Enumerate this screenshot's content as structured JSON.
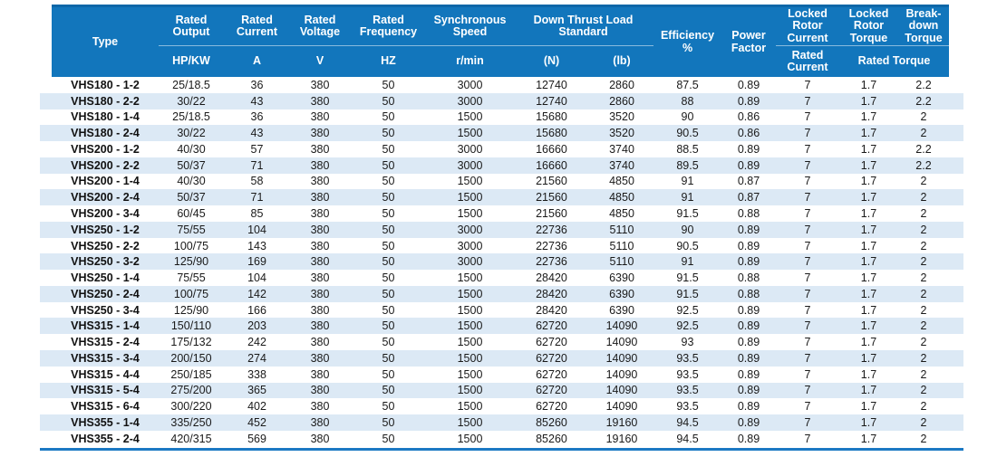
{
  "table": {
    "header": {
      "type_label": "Type",
      "top": {
        "rated_output": "Rated\nOutput",
        "rated_current": "Rated\nCurrent",
        "rated_voltage": "Rated\nVoltage",
        "rated_frequency": "Rated\nFrequency",
        "synchronous_speed": "Synchronous\nSpeed",
        "down_thrust_load": "Down Thrust Load\nStandard",
        "efficiency": "Efficiency\n%",
        "power_factor": "Power\nFactor",
        "locked_rotor_current": "Locked\nRotor\nCurrent",
        "locked_rotor_torque": "Locked\nRotor\nTorque",
        "breakdown_torque": "Break-\ndown\nTorque"
      },
      "units": {
        "output": "HP/KW",
        "current": "A",
        "voltage": "V",
        "frequency": "HZ",
        "speed": "r/min",
        "thrust_newton": "(N)",
        "thrust_pound": "(lb)",
        "locked_rotor_current_sub": "Rated\nCurrent",
        "torque_sub": "Rated Torque"
      }
    },
    "rows": [
      [
        "VHS180 - 1-2",
        "25/18.5",
        "36",
        "380",
        "50",
        "3000",
        "12740",
        "2860",
        "87.5",
        "0.89",
        "7",
        "1.7",
        "2.2"
      ],
      [
        "VHS180 - 2-2",
        "30/22",
        "43",
        "380",
        "50",
        "3000",
        "12740",
        "2860",
        "88",
        "0.89",
        "7",
        "1.7",
        "2.2"
      ],
      [
        "VHS180 - 1-4",
        "25/18.5",
        "36",
        "380",
        "50",
        "1500",
        "15680",
        "3520",
        "90",
        "0.86",
        "7",
        "1.7",
        "2"
      ],
      [
        "VHS180 - 2-4",
        "30/22",
        "43",
        "380",
        "50",
        "1500",
        "15680",
        "3520",
        "90.5",
        "0.86",
        "7",
        "1.7",
        "2"
      ],
      [
        "VHS200 - 1-2",
        "40/30",
        "57",
        "380",
        "50",
        "3000",
        "16660",
        "3740",
        "88.5",
        "0.89",
        "7",
        "1.7",
        "2.2"
      ],
      [
        "VHS200 - 2-2",
        "50/37",
        "71",
        "380",
        "50",
        "3000",
        "16660",
        "3740",
        "89.5",
        "0.89",
        "7",
        "1.7",
        "2.2"
      ],
      [
        "VHS200 - 1-4",
        "40/30",
        "58",
        "380",
        "50",
        "1500",
        "21560",
        "4850",
        "91",
        "0.87",
        "7",
        "1.7",
        "2"
      ],
      [
        "VHS200 - 2-4",
        "50/37",
        "71",
        "380",
        "50",
        "1500",
        "21560",
        "4850",
        "91",
        "0.87",
        "7",
        "1.7",
        "2"
      ],
      [
        "VHS200 - 3-4",
        "60/45",
        "85",
        "380",
        "50",
        "1500",
        "21560",
        "4850",
        "91.5",
        "0.88",
        "7",
        "1.7",
        "2"
      ],
      [
        "VHS250 - 1-2",
        "75/55",
        "104",
        "380",
        "50",
        "3000",
        "22736",
        "5110",
        "90",
        "0.89",
        "7",
        "1.7",
        "2"
      ],
      [
        "VHS250 - 2-2",
        "100/75",
        "143",
        "380",
        "50",
        "3000",
        "22736",
        "5110",
        "90.5",
        "0.89",
        "7",
        "1.7",
        "2"
      ],
      [
        "VHS250 - 3-2",
        "125/90",
        "169",
        "380",
        "50",
        "3000",
        "22736",
        "5110",
        "91",
        "0.89",
        "7",
        "1.7",
        "2"
      ],
      [
        "VHS250 - 1-4",
        "75/55",
        "104",
        "380",
        "50",
        "1500",
        "28420",
        "6390",
        "91.5",
        "0.88",
        "7",
        "1.7",
        "2"
      ],
      [
        "VHS250 - 2-4",
        "100/75",
        "142",
        "380",
        "50",
        "1500",
        "28420",
        "6390",
        "91.5",
        "0.88",
        "7",
        "1.7",
        "2"
      ],
      [
        "VHS250 - 3-4",
        "125/90",
        "166",
        "380",
        "50",
        "1500",
        "28420",
        "6390",
        "92.5",
        "0.89",
        "7",
        "1.7",
        "2"
      ],
      [
        "VHS315 - 1-4",
        "150/110",
        "203",
        "380",
        "50",
        "1500",
        "62720",
        "14090",
        "92.5",
        "0.89",
        "7",
        "1.7",
        "2"
      ],
      [
        "VHS315 - 2-4",
        "175/132",
        "242",
        "380",
        "50",
        "1500",
        "62720",
        "14090",
        "93",
        "0.89",
        "7",
        "1.7",
        "2"
      ],
      [
        "VHS315 - 3-4",
        "200/150",
        "274",
        "380",
        "50",
        "1500",
        "62720",
        "14090",
        "93.5",
        "0.89",
        "7",
        "1.7",
        "2"
      ],
      [
        "VHS315 - 4-4",
        "250/185",
        "338",
        "380",
        "50",
        "1500",
        "62720",
        "14090",
        "93.5",
        "0.89",
        "7",
        "1.7",
        "2"
      ],
      [
        "VHS315 - 5-4",
        "275/200",
        "365",
        "380",
        "50",
        "1500",
        "62720",
        "14090",
        "93.5",
        "0.89",
        "7",
        "1.7",
        "2"
      ],
      [
        "VHS315 - 6-4",
        "300/220",
        "402",
        "380",
        "50",
        "1500",
        "62720",
        "14090",
        "93.5",
        "0.89",
        "7",
        "1.7",
        "2"
      ],
      [
        "VHS355 - 1-4",
        "335/250",
        "452",
        "380",
        "50",
        "1500",
        "85260",
        "19160",
        "94.5",
        "0.89",
        "7",
        "1.7",
        "2"
      ],
      [
        "VHS355 - 2-4",
        "420/315",
        "569",
        "380",
        "50",
        "1500",
        "85260",
        "19160",
        "94.5",
        "0.89",
        "7",
        "1.7",
        "2"
      ]
    ]
  },
  "colors": {
    "header_background": "#1276bc",
    "header_top_edge": "#0d67a8",
    "stripe_row": "#dce9f5",
    "bottom_border": "#1b79c3",
    "header_text": "#ffffff",
    "body_text": "#1a1a1a"
  }
}
